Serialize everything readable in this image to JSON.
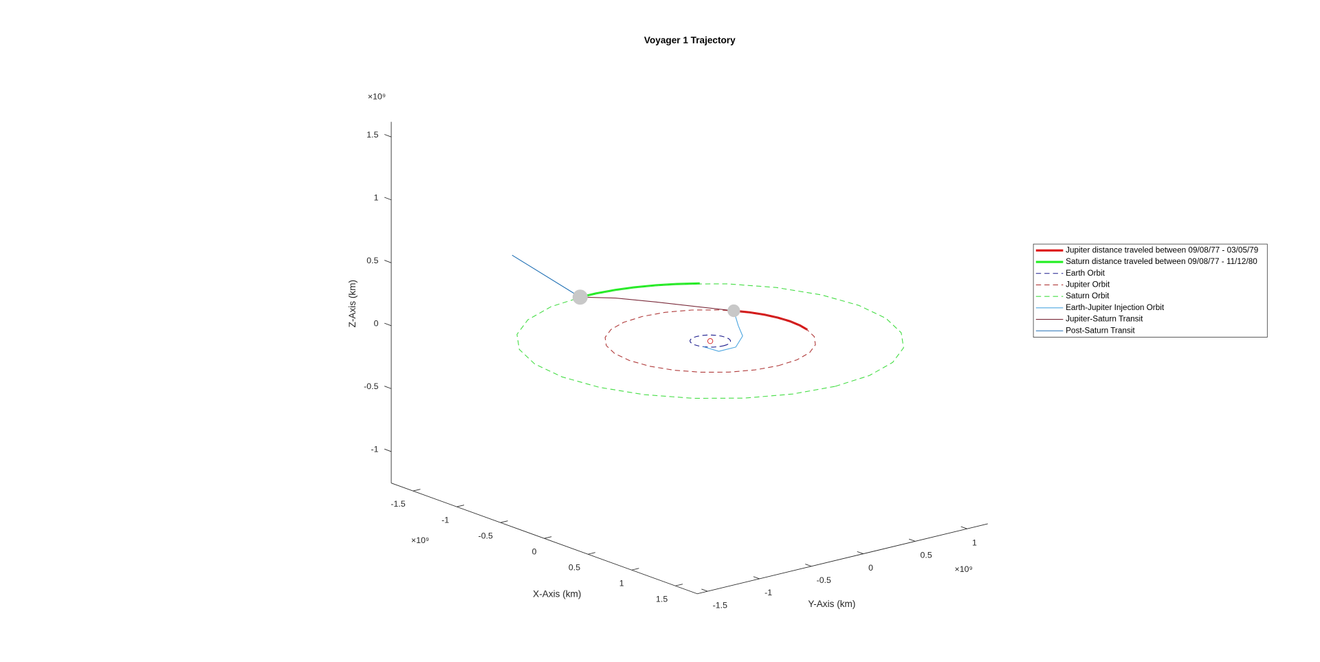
{
  "chart_data": {
    "type": "line3d",
    "title": "Voyager 1 Trajectory",
    "xlabel": "X-Axis (km)",
    "ylabel": "Y-Axis (km)",
    "zlabel": "Z-Axis (km)",
    "xmultiplier": "×10⁹",
    "ymultiplier": "×10⁹",
    "zmultiplier": "×10⁹",
    "xlim": [
      -1.75,
      1.75
    ],
    "ylim": [
      -1.6,
      1.2
    ],
    "zlim": [
      -1.25,
      1.62
    ],
    "xticks": [
      -1.5,
      -1,
      -0.5,
      0,
      0.5,
      1,
      1.5
    ],
    "yticks": [
      -1.5,
      -1,
      -0.5,
      0,
      0.5,
      1
    ],
    "zticks": [
      -1,
      -0.5,
      0,
      0.5,
      1,
      1.5
    ],
    "grid": false,
    "legend": "right",
    "series": [
      {
        "name": "Jupiter distance traveled between 09/08/77 - 03/05/79",
        "color": "#dd1111",
        "linestyle": "solid",
        "linewidth": 2.5,
        "x": [
          0.227,
          0.108,
          -0.014,
          -0.135,
          -0.253,
          -0.365,
          -0.468
        ],
        "y": [
          0.744,
          0.77,
          0.778,
          0.766,
          0.736,
          0.687,
          0.621
        ],
        "z": [
          0,
          0,
          0,
          0,
          0,
          0,
          0
        ]
      },
      {
        "name": "Saturn distance traveled between 09/08/77 - 11/12/80",
        "color": "#22ee22",
        "linestyle": "solid",
        "linewidth": 2.5,
        "x": [
          -1.142,
          -1.238,
          -1.307,
          -1.368,
          -1.404,
          -1.427,
          -1.429
        ],
        "y": [
          0.861,
          0.715,
          0.582,
          0.418,
          0.273,
          0.1,
          -0.05
        ],
        "z": [
          0,
          0,
          0,
          0,
          0,
          0,
          0
        ]
      },
      {
        "name": "Earth Orbit",
        "color": "#1a1a8c",
        "linestyle": "dashed",
        "linewidth": 0.9,
        "x": [
          0.15,
          0.145,
          0.13,
          0.106,
          0.075,
          0.039,
          0,
          -0.039,
          -0.075,
          -0.106,
          -0.13,
          -0.145,
          -0.15,
          -0.145,
          -0.13,
          -0.106,
          -0.075,
          -0.039,
          0,
          0.039,
          0.075,
          0.106,
          0.13,
          0.145,
          0.15
        ],
        "y": [
          0,
          0.039,
          0.075,
          0.106,
          0.13,
          0.145,
          0.15,
          0.145,
          0.13,
          0.106,
          0.075,
          0.039,
          0,
          -0.039,
          -0.075,
          -0.106,
          -0.13,
          -0.145,
          -0.15,
          -0.145,
          -0.13,
          -0.106,
          -0.075,
          -0.039,
          0
        ],
        "z": [
          0,
          0,
          0,
          0,
          0,
          0,
          0,
          0,
          0,
          0,
          0,
          0,
          0,
          0,
          0,
          0,
          0,
          0,
          0,
          0,
          0,
          0,
          0,
          0,
          0
        ]
      },
      {
        "name": "Jupiter Orbit",
        "color": "#b03a3a",
        "linestyle": "dashed",
        "linewidth": 0.9,
        "x": [
          0.778,
          0.752,
          0.674,
          0.55,
          0.389,
          0.201,
          0,
          -0.201,
          -0.389,
          -0.55,
          -0.674,
          -0.752,
          -0.778,
          -0.752,
          -0.674,
          -0.55,
          -0.389,
          -0.201,
          0,
          0.201,
          0.389,
          0.55,
          0.674,
          0.752,
          0.778
        ],
        "y": [
          0,
          0.201,
          0.389,
          0.55,
          0.674,
          0.752,
          0.778,
          0.752,
          0.674,
          0.55,
          0.389,
          0.201,
          0,
          -0.201,
          -0.389,
          -0.55,
          -0.674,
          -0.752,
          -0.778,
          -0.752,
          -0.674,
          -0.55,
          -0.389,
          -0.201,
          0
        ],
        "z": [
          0,
          0,
          0,
          0,
          0,
          0,
          0,
          0,
          0,
          0,
          0,
          0,
          0,
          0,
          0,
          0,
          0,
          0,
          0,
          0,
          0,
          0,
          0,
          0,
          0
        ]
      },
      {
        "name": "Saturn Orbit",
        "color": "#44dd44",
        "linestyle": "dashed",
        "linewidth": 0.9,
        "x": [
          1.43,
          1.381,
          1.238,
          1.011,
          0.715,
          0.37,
          0,
          -0.37,
          -0.715,
          -1.011,
          -1.238,
          -1.381,
          -1.43,
          -1.381,
          -1.238,
          -1.011,
          -0.715,
          -0.37,
          0,
          0.37,
          0.715,
          1.011,
          1.238,
          1.381,
          1.43
        ],
        "y": [
          0,
          0.37,
          0.715,
          1.011,
          1.238,
          1.381,
          1.43,
          1.381,
          1.238,
          1.011,
          0.715,
          0.37,
          0,
          -0.37,
          -0.715,
          -1.011,
          -1.238,
          -1.381,
          -1.43,
          -1.381,
          -1.238,
          -1.011,
          -0.715,
          -0.37,
          0
        ],
        "z": [
          0,
          0,
          0,
          0,
          0,
          0,
          0,
          0,
          0,
          0,
          0,
          0,
          0,
          0,
          0,
          0,
          0,
          0,
          0,
          0,
          0,
          0,
          0,
          0,
          0
        ]
      },
      {
        "name": "Earth-Jupiter Injection Orbit",
        "color": "#4da6e0",
        "linestyle": "solid",
        "linewidth": 0.9,
        "x": [
          0.075,
          0.233,
          0.23,
          0.051,
          -0.162,
          -0.468
        ],
        "y": [
          -0.13,
          -0.114,
          0.052,
          0.269,
          0.407,
          0.621
        ],
        "z": [
          0,
          0,
          0,
          0,
          0,
          0
        ]
      },
      {
        "name": "Jupiter-Saturn Transit",
        "color": "#7a2a3a",
        "linestyle": "solid",
        "linewidth": 0.9,
        "x": [
          -0.468,
          -0.99,
          -1.25,
          -1.429
        ],
        "y": [
          0.621,
          0.31,
          0.14,
          -0.05
        ],
        "z": [
          0,
          0,
          0,
          0
        ]
      },
      {
        "name": "Post-Saturn Transit",
        "color": "#1f6fb4",
        "linestyle": "solid",
        "linewidth": 0.9,
        "x": [
          -1.429,
          -1.342
        ],
        "y": [
          -0.05,
          -0.779
        ],
        "z": [
          0,
          0.5
        ]
      }
    ],
    "markers": [
      {
        "x": 0,
        "y": 0,
        "z": 0,
        "color": "#d62728",
        "filled": false,
        "size": 3
      },
      {
        "x": -0.468,
        "y": 0.621,
        "z": 0,
        "color": "#c8c8c8",
        "filled": true,
        "size": 7
      },
      {
        "x": -1.429,
        "y": -0.05,
        "z": 0,
        "color": "#c8c8c8",
        "filled": true,
        "size": 8.5
      }
    ]
  }
}
